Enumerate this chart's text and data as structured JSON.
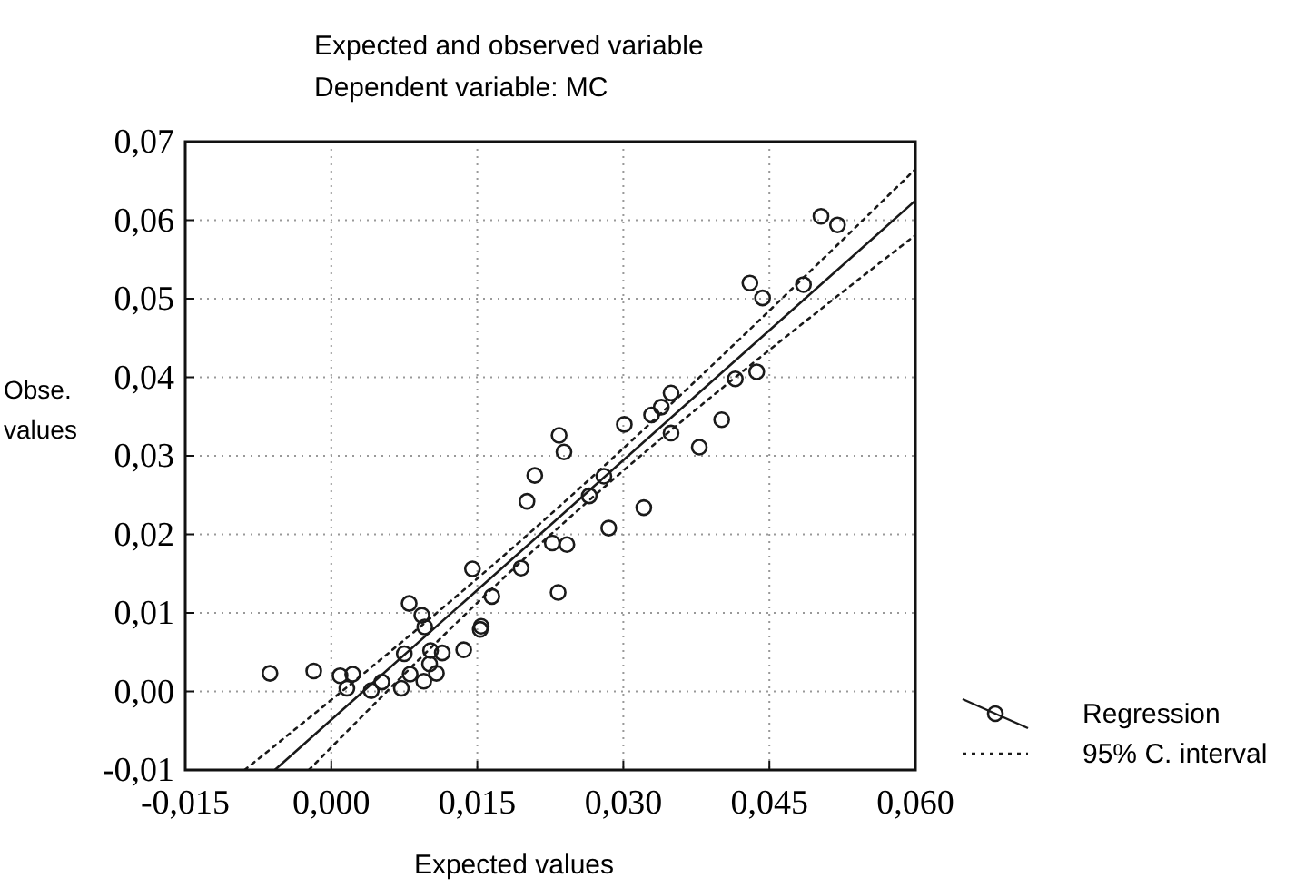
{
  "chart_data": {
    "type": "scatter",
    "title": "Expected and observed variable",
    "subtitle": "Dependent variable: MC",
    "xlabel": "Expected values",
    "ylabel": "Obse. values",
    "xlim": [
      -0.015,
      0.06
    ],
    "xticks": [
      {
        "value": -0.015,
        "label": "-0,015"
      },
      {
        "value": 0,
        "label": "0,000"
      },
      {
        "value": 0.015,
        "label": "0,015"
      },
      {
        "value": 0.03,
        "label": "0,030"
      },
      {
        "value": 0.045,
        "label": "0,045"
      },
      {
        "value": 0.06,
        "label": "0,060"
      }
    ],
    "ylim": [
      -0.01,
      0.07
    ],
    "yticks": [
      {
        "value": -0.01,
        "label": "-0,01"
      },
      {
        "value": 0,
        "label": "0,00"
      },
      {
        "value": 0.01,
        "label": "0,01"
      },
      {
        "value": 0.02,
        "label": "0,02"
      },
      {
        "value": 0.03,
        "label": "0,03"
      },
      {
        "value": 0.04,
        "label": "0,04"
      },
      {
        "value": 0.05,
        "label": "0,05"
      },
      {
        "value": 0.06,
        "label": "0,06"
      },
      {
        "value": 0.07,
        "label": "0,07"
      }
    ],
    "grid": true,
    "legend": "bottom right",
    "series": [
      {
        "name": "Regression",
        "marker": "circle",
        "color": "#1a1a1a",
        "x": [
          -0.0063,
          -0.0018,
          0.0009,
          0.0016,
          0.0022,
          0.0041,
          0.0052,
          0.0072,
          0.0075,
          0.008,
          0.0081,
          0.0093,
          0.0096,
          0.0095,
          0.0101,
          0.0102,
          0.0108,
          0.0114,
          0.0136,
          0.0145,
          0.0153,
          0.0154,
          0.0165,
          0.0195,
          0.0201,
          0.0209,
          0.0227,
          0.0233,
          0.0234,
          0.0239,
          0.0242,
          0.0265,
          0.028,
          0.0285,
          0.0301,
          0.0321,
          0.0329,
          0.0339,
          0.0349,
          0.0349,
          0.0378,
          0.0401,
          0.0415,
          0.0437,
          0.043,
          0.0443,
          0.0485,
          0.0503,
          0.052
        ],
        "values": [
          0.0023,
          0.0026,
          0.002,
          0.0004,
          0.0022,
          0.0001,
          0.0012,
          0.0004,
          0.0048,
          0.0112,
          0.0022,
          0.0097,
          0.0082,
          0.0013,
          0.0035,
          0.0052,
          0.0023,
          0.0049,
          0.0053,
          0.0156,
          0.0079,
          0.0083,
          0.0121,
          0.0157,
          0.0242,
          0.0275,
          0.0189,
          0.0126,
          0.0326,
          0.0305,
          0.0187,
          0.0249,
          0.0274,
          0.0208,
          0.034,
          0.0234,
          0.0352,
          0.0362,
          0.038,
          0.0329,
          0.0311,
          0.0346,
          0.0398,
          0.0407,
          0.052,
          0.0501,
          0.0518,
          0.0605,
          0.0594
        ]
      },
      {
        "type": "line",
        "line_style": "solid",
        "color": "#1a1a1a",
        "x": [
          -0.0058,
          0.06
        ],
        "values": [
          -0.01,
          0.0625
        ]
      },
      {
        "type": "line",
        "name": "95% C. interval",
        "line_style": "dotted",
        "color": "#1a1a1a",
        "x": [
          -0.0089,
          0.018,
          0.06
        ],
        "values": [
          -0.01,
          0.0176,
          0.0665
        ]
      },
      {
        "type": "line",
        "line_style": "dotted",
        "color": "#1a1a1a",
        "x": [
          -0.0023,
          0.018,
          0.06
        ],
        "values": [
          -0.01,
          0.0148,
          0.0581
        ]
      }
    ]
  }
}
